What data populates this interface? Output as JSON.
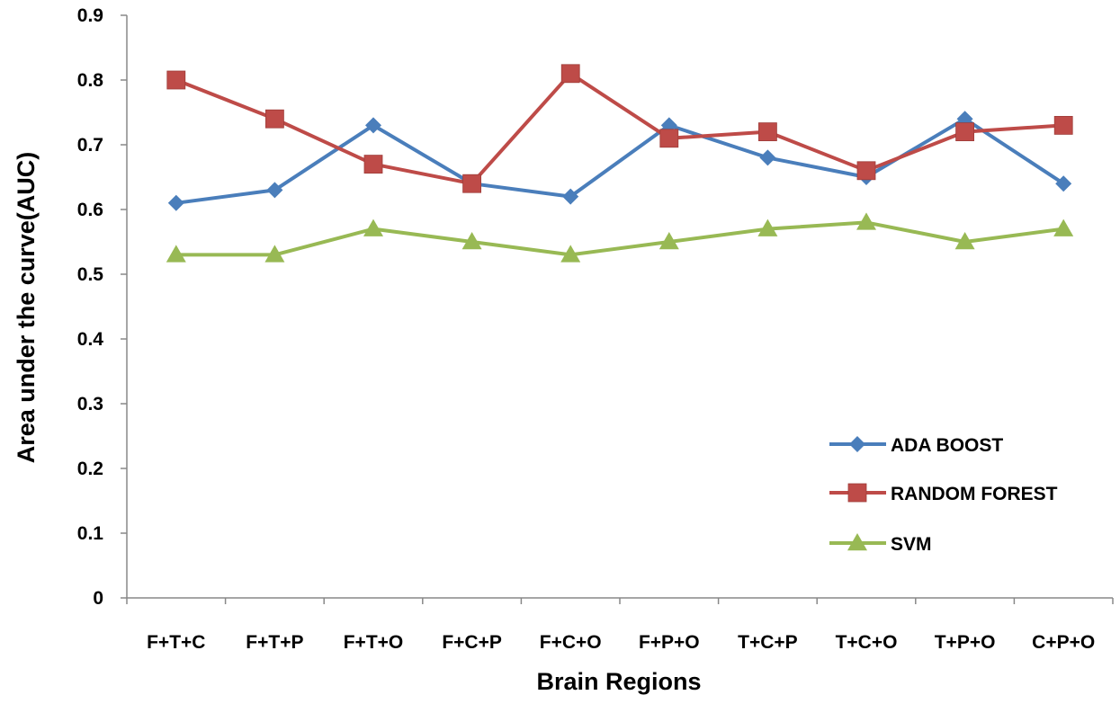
{
  "chart_data": {
    "type": "line",
    "title": "",
    "xlabel": "Brain Regions",
    "ylabel": "Area  under the curve(AUC)",
    "ylim": [
      0,
      0.9
    ],
    "yticks": [
      "0",
      "0.1",
      "0.2",
      "0.3",
      "0.4",
      "0.5",
      "0.6",
      "0.7",
      "0.8",
      "0.9"
    ],
    "grid": false,
    "legend_position": "bottom-right",
    "categories": [
      "F+T+C",
      "F+T+P",
      "F+T+O",
      "F+C+P",
      "F+C+O",
      "F+P+O",
      "T+C+P",
      "T+C+O",
      "T+P+O",
      "C+P+O"
    ],
    "series": [
      {
        "name": "ADA BOOST",
        "color": "#4A7EBB",
        "marker": "diamond",
        "values": [
          0.61,
          0.63,
          0.73,
          0.64,
          0.62,
          0.73,
          0.68,
          0.65,
          0.74,
          0.64
        ]
      },
      {
        "name": "RANDOM FOREST",
        "color": "#BE4B48",
        "marker": "square",
        "values": [
          0.8,
          0.74,
          0.67,
          0.64,
          0.81,
          0.71,
          0.72,
          0.66,
          0.72,
          0.73
        ]
      },
      {
        "name": "SVM",
        "color": "#98B954",
        "marker": "triangle",
        "values": [
          0.53,
          0.53,
          0.57,
          0.55,
          0.53,
          0.55,
          0.57,
          0.58,
          0.55,
          0.57
        ]
      }
    ]
  }
}
